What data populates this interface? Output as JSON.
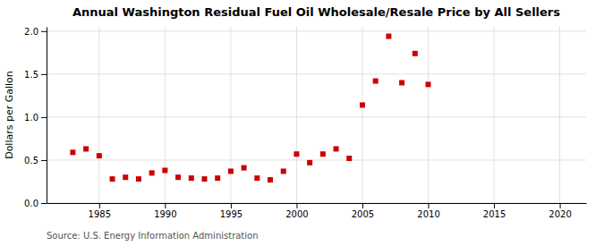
{
  "chart_data": {
    "type": "scatter",
    "title": "Annual Washington Residual Fuel Oil Wholesale/Resale Price by All Sellers",
    "ylabel": "Dollars per Gallon",
    "annotations": [
      "Source: U.S. Energy Information Administration"
    ],
    "x": [
      1983,
      1984,
      1985,
      1986,
      1987,
      1988,
      1989,
      1990,
      1991,
      1992,
      1993,
      1994,
      1995,
      1996,
      1997,
      1998,
      1999,
      2000,
      2001,
      2002,
      2003,
      2004,
      2005,
      2006,
      2007,
      2008,
      2009,
      2010
    ],
    "values": [
      0.59,
      0.63,
      0.55,
      0.28,
      0.3,
      0.28,
      0.35,
      0.38,
      0.3,
      0.29,
      0.28,
      0.29,
      0.37,
      0.41,
      0.29,
      0.27,
      0.37,
      0.57,
      0.47,
      0.57,
      0.63,
      0.52,
      1.14,
      1.42,
      1.94,
      1.4,
      1.74,
      1.38
    ],
    "color": "#cc0000",
    "marker": "square",
    "xlim": [
      1981,
      2022
    ],
    "ylim": [
      0.0,
      2.05
    ],
    "xticks": [
      1985,
      1990,
      1995,
      2000,
      2005,
      2010,
      2015,
      2020
    ],
    "yticks": [
      {
        "value": 0.0,
        "label": "0.0"
      },
      0.5,
      {
        "value": 1.0,
        "label": "1.0"
      },
      1.5,
      {
        "value": 2.0,
        "label": "2.0"
      }
    ],
    "grid": true
  }
}
